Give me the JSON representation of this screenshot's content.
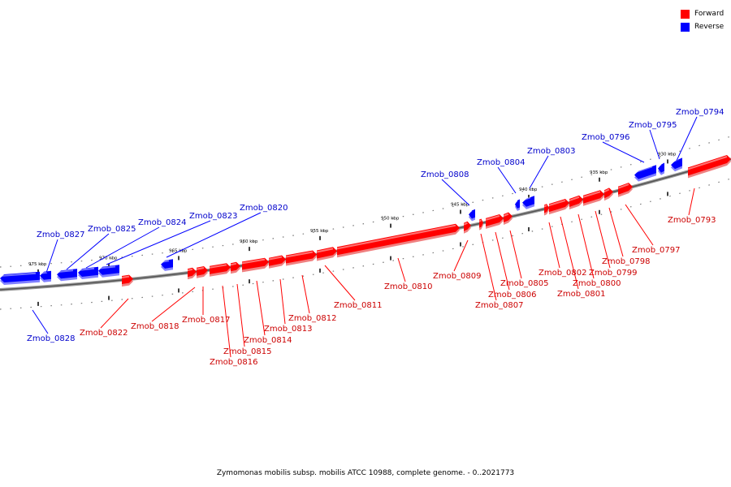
{
  "legend": {
    "forward_label": "Forward",
    "reverse_label": "Reverse",
    "forward_color": "#ff0000",
    "reverse_color": "#0000ff"
  },
  "caption": "Zymomonas mobilis subsp. mobilis ATCC 10988, complete genome. - 0..2021773",
  "ticks": [
    {
      "kbp": 930,
      "label": "930 kbp"
    },
    {
      "kbp": 935,
      "label": "935 kbp"
    },
    {
      "kbp": 940,
      "label": "940 kbp"
    },
    {
      "kbp": 945,
      "label": "945 kbp"
    },
    {
      "kbp": 950,
      "label": "950 kbp"
    },
    {
      "kbp": 955,
      "label": "955 kbp"
    },
    {
      "kbp": 960,
      "label": "960 kbp"
    },
    {
      "kbp": 965,
      "label": "965 kbp"
    },
    {
      "kbp": 970,
      "label": "970 kbp"
    },
    {
      "kbp": 975,
      "label": "975 kbp"
    }
  ],
  "genes": [
    {
      "name": "Zmob_0794",
      "strand": "reverse"
    },
    {
      "name": "Zmob_0795",
      "strand": "reverse"
    },
    {
      "name": "Zmob_0796",
      "strand": "reverse"
    },
    {
      "name": "Zmob_0803",
      "strand": "reverse"
    },
    {
      "name": "Zmob_0804",
      "strand": "reverse"
    },
    {
      "name": "Zmob_0808",
      "strand": "reverse"
    },
    {
      "name": "Zmob_0820",
      "strand": "reverse"
    },
    {
      "name": "Zmob_0823",
      "strand": "reverse"
    },
    {
      "name": "Zmob_0824",
      "strand": "reverse"
    },
    {
      "name": "Zmob_0825",
      "strand": "reverse"
    },
    {
      "name": "Zmob_0827",
      "strand": "reverse"
    },
    {
      "name": "Zmob_0828",
      "strand": "reverse"
    },
    {
      "name": "Zmob_0793",
      "strand": "forward"
    },
    {
      "name": "Zmob_0797",
      "strand": "forward"
    },
    {
      "name": "Zmob_0798",
      "strand": "forward"
    },
    {
      "name": "Zmob_0799",
      "strand": "forward"
    },
    {
      "name": "Zmob_0800",
      "strand": "forward"
    },
    {
      "name": "Zmob_0801",
      "strand": "forward"
    },
    {
      "name": "Zmob_0802",
      "strand": "forward"
    },
    {
      "name": "Zmob_0805",
      "strand": "forward"
    },
    {
      "name": "Zmob_0806",
      "strand": "forward"
    },
    {
      "name": "Zmob_0807",
      "strand": "forward"
    },
    {
      "name": "Zmob_0809",
      "strand": "forward"
    },
    {
      "name": "Zmob_0810",
      "strand": "forward"
    },
    {
      "name": "Zmob_0811",
      "strand": "forward"
    },
    {
      "name": "Zmob_0812",
      "strand": "forward"
    },
    {
      "name": "Zmob_0813",
      "strand": "forward"
    },
    {
      "name": "Zmob_0814",
      "strand": "forward"
    },
    {
      "name": "Zmob_0815",
      "strand": "forward"
    },
    {
      "name": "Zmob_0816",
      "strand": "forward"
    },
    {
      "name": "Zmob_0817",
      "strand": "forward"
    },
    {
      "name": "Zmob_0818",
      "strand": "forward"
    },
    {
      "name": "Zmob_0822",
      "strand": "forward"
    }
  ]
}
